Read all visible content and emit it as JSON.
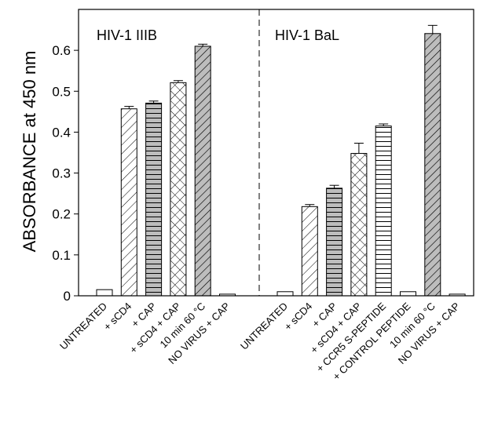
{
  "chart_data": {
    "type": "bar",
    "ylabel": "ABSORBANCE at 450 nm",
    "ylim": [
      0,
      0.7
    ],
    "yticks": [
      0,
      0.1,
      0.2,
      0.3,
      0.4,
      0.5,
      0.6
    ],
    "ytick_labels": [
      "0",
      "0.1",
      "0.2",
      "0.3",
      "0.4",
      "0.5",
      "0.6"
    ],
    "grid": false,
    "panels": [
      {
        "label": "HIV-1 IIIB",
        "bars": [
          {
            "category": "UNTREATED",
            "value": 0.015,
            "error": 0,
            "pattern": "none"
          },
          {
            "category": "+ sCD4",
            "value": 0.457,
            "error": 0.006,
            "pattern": "diagonal"
          },
          {
            "category": "+ CAP",
            "value": 0.471,
            "error": 0.005,
            "pattern": "horizontal-gray"
          },
          {
            "category": "+ sCD4 + CAP",
            "value": 0.521,
            "error": 0.005,
            "pattern": "crosshatch"
          },
          {
            "category": "10 min 60 °C",
            "value": 0.61,
            "error": 0.005,
            "pattern": "diagonal-gray"
          },
          {
            "category": "NO VIRUS + CAP",
            "value": 0.004,
            "error": 0,
            "pattern": "none"
          }
        ]
      },
      {
        "label": "HIV-1 BaL",
        "bars": [
          {
            "category": "UNTREATED",
            "value": 0.01,
            "error": 0,
            "pattern": "none"
          },
          {
            "category": "+ sCD4",
            "value": 0.218,
            "error": 0.005,
            "pattern": "diagonal"
          },
          {
            "category": "+ CAP",
            "value": 0.263,
            "error": 0.007,
            "pattern": "horizontal-gray"
          },
          {
            "category": "+ sCD4 + CAP",
            "value": 0.348,
            "error": 0.025,
            "pattern": "crosshatch"
          },
          {
            "category": "+ CCR5 S-PEPTIDE",
            "value": 0.415,
            "error": 0.005,
            "pattern": "horizontal"
          },
          {
            "category": "+ CONTROL PEPTIDE",
            "value": 0.01,
            "error": 0,
            "pattern": "none"
          },
          {
            "category": "10 min 60 °C",
            "value": 0.641,
            "error": 0.02,
            "pattern": "diagonal-gray"
          },
          {
            "category": "NO VIRUS + CAP",
            "value": 0.004,
            "error": 0,
            "pattern": "none"
          }
        ]
      }
    ]
  }
}
